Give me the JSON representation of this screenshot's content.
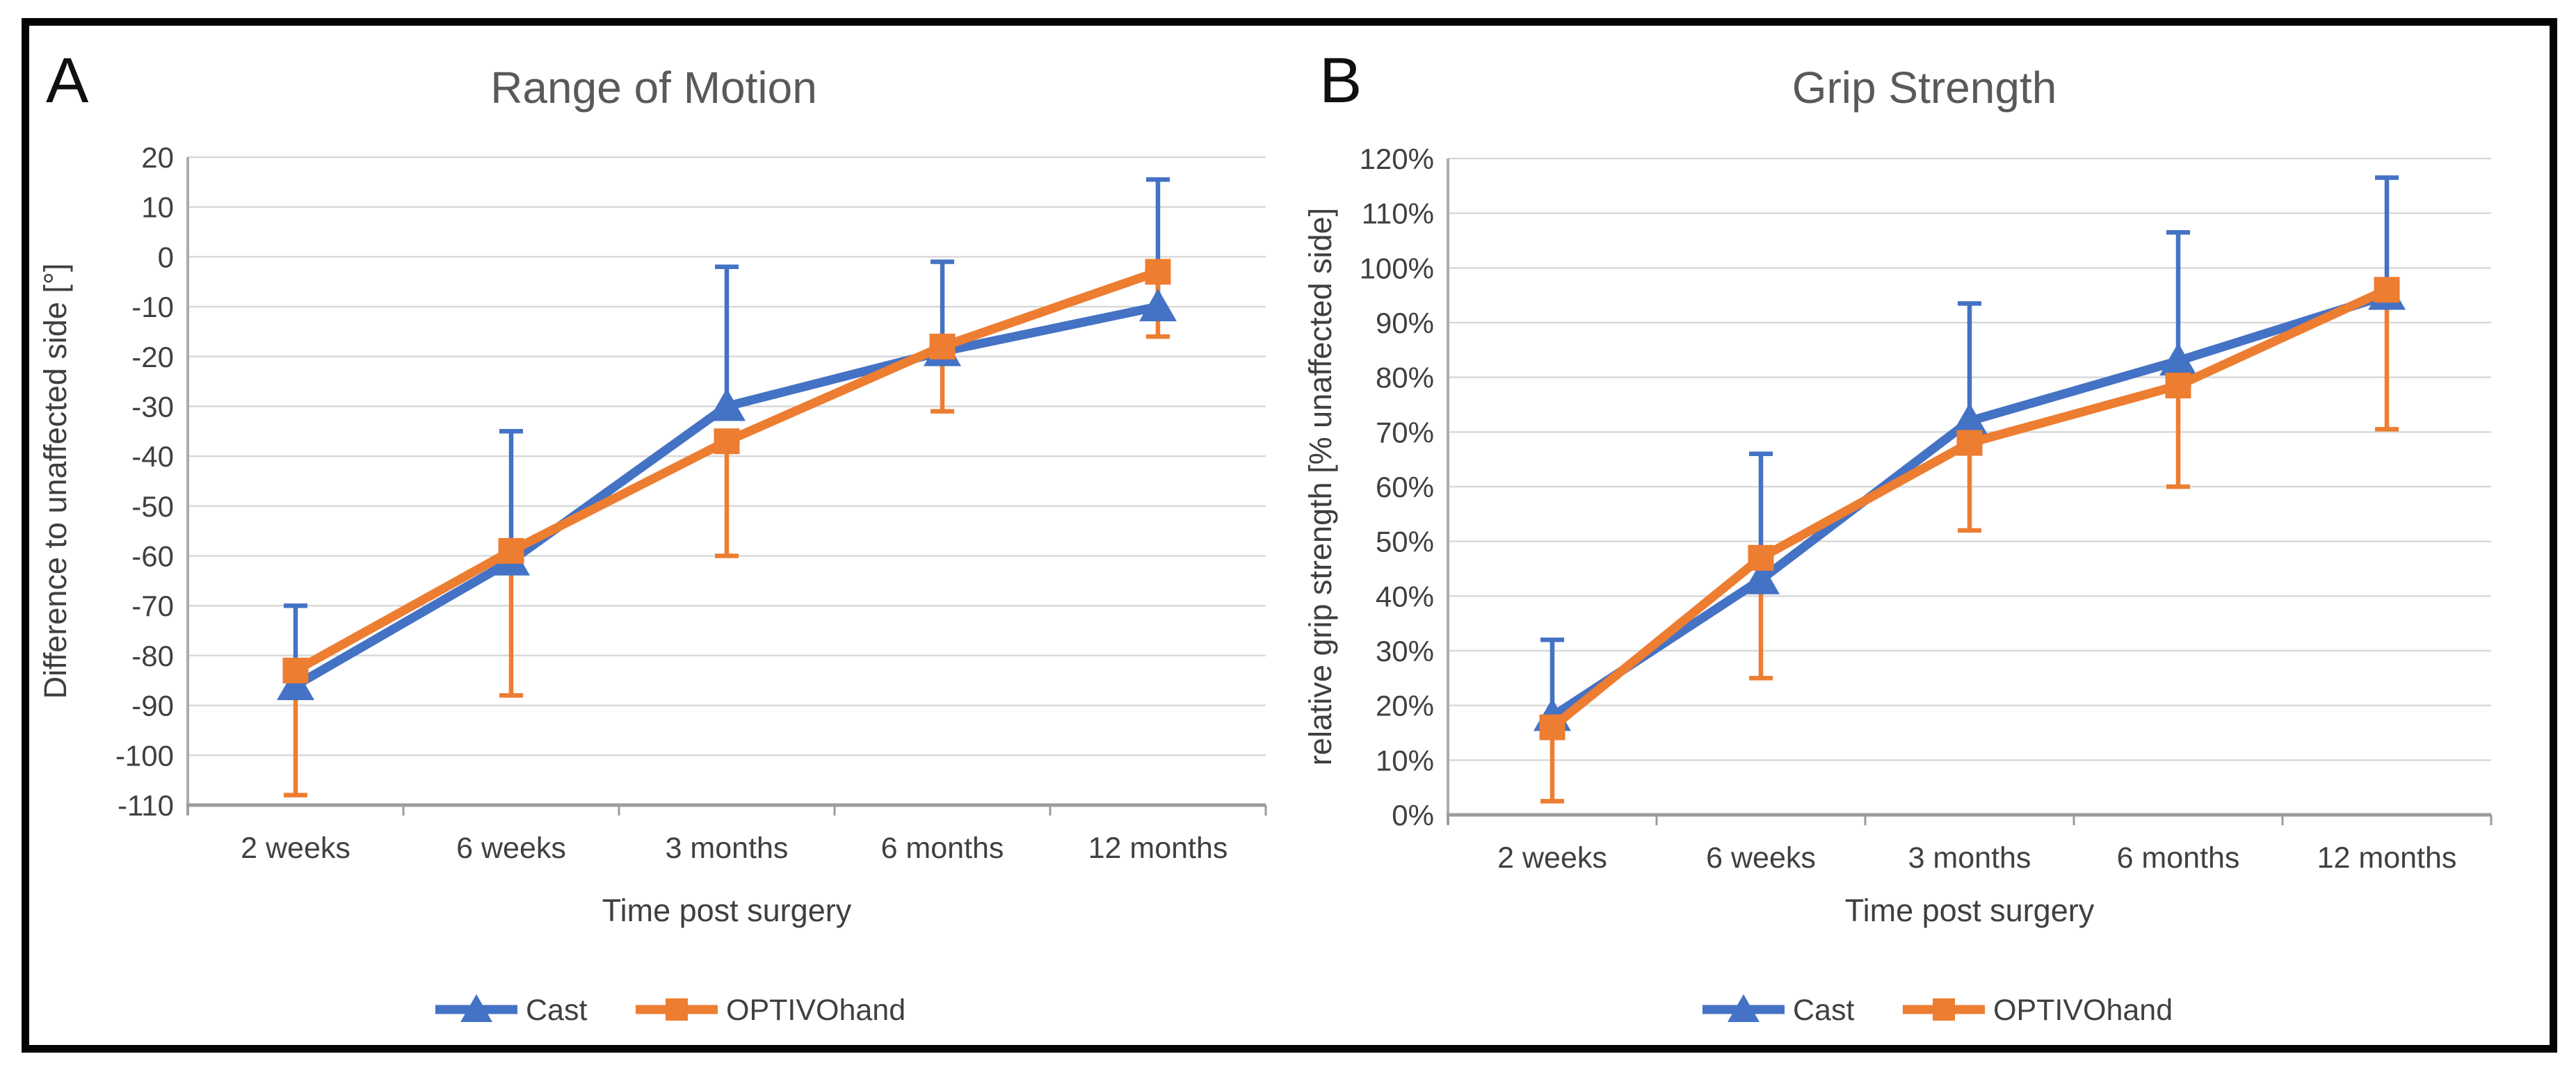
{
  "figure": {
    "background": "#ffffff",
    "border_color": "#040404"
  },
  "chart_data": [
    {
      "type": "line",
      "panel_letter": "A",
      "title": "Range of Motion",
      "xlabel": "Time post surgery",
      "ylabel": "Difference to unaffected side [°]",
      "categories": [
        "2 weeks",
        "6 weeks",
        "3 months",
        "6 months",
        "12 months"
      ],
      "ylim": [
        -110,
        20
      ],
      "ytick_step": 10,
      "ytick_suffix": "",
      "grid": true,
      "legend_position": "bottom",
      "series": [
        {
          "name": "Cast",
          "color": "#4472C4",
          "marker": "triangle",
          "values": [
            -86,
            -61,
            -30,
            -19,
            -10
          ],
          "error_direction": "plus",
          "error_cap_values": [
            -70,
            -35,
            -2,
            -1,
            15.5
          ]
        },
        {
          "name": "OPTIVOhand",
          "color": "#ED7D31",
          "marker": "square",
          "values": [
            -83,
            -59,
            -37,
            -18,
            -3
          ],
          "error_direction": "minus",
          "error_cap_values": [
            -108,
            -88,
            -60,
            -31,
            -16
          ]
        }
      ]
    },
    {
      "type": "line",
      "panel_letter": "B",
      "title": "Grip Strength",
      "xlabel": "Time post surgery",
      "ylabel": "relative grip strength [% unaffected side]",
      "categories": [
        "2 weeks",
        "6 weeks",
        "3 months",
        "6 months",
        "12 months"
      ],
      "ylim": [
        0,
        120
      ],
      "ytick_step": 10,
      "ytick_suffix": "%",
      "grid": true,
      "legend_position": "bottom",
      "series": [
        {
          "name": "Cast",
          "color": "#4472C4",
          "marker": "triangle",
          "values": [
            18,
            43,
            72,
            83,
            95
          ],
          "error_direction": "plus",
          "error_cap_values": [
            32,
            66,
            93.5,
            106.5,
            116.5
          ]
        },
        {
          "name": "OPTIVOhand",
          "color": "#ED7D31",
          "marker": "square",
          "values": [
            16,
            47,
            68,
            78.5,
            96
          ],
          "error_direction": "minus",
          "error_cap_values": [
            2.5,
            25,
            52,
            60,
            70.5
          ]
        }
      ]
    }
  ]
}
